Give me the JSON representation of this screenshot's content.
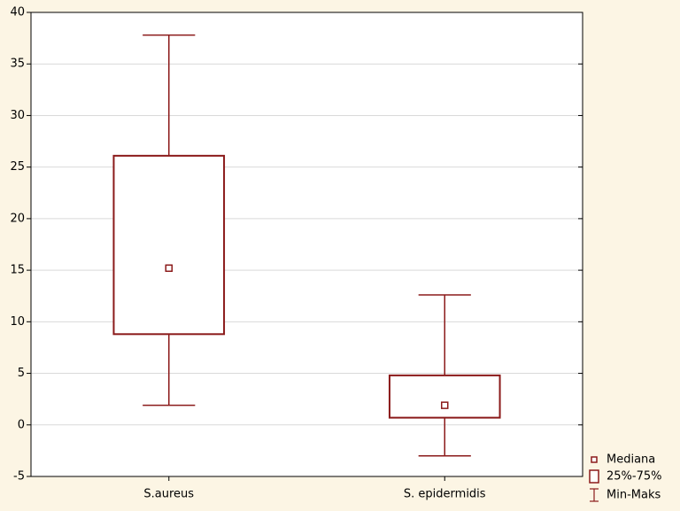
{
  "chart_data": {
    "type": "box",
    "categories": [
      "S.aureus",
      "S. epidermidis"
    ],
    "boxes": [
      {
        "min": 1.9,
        "q1": 8.8,
        "median": 15.2,
        "q3": 26.1,
        "max": 37.8
      },
      {
        "min": -3,
        "q1": 0.7,
        "median": 1.9,
        "q3": 4.8,
        "max": 12.6
      }
    ],
    "color": "#8b1a1a",
    "ylim": [
      -5,
      40
    ],
    "yticks": [
      -5,
      0,
      5,
      10,
      15,
      20,
      25,
      30,
      35,
      40
    ],
    "grid": true,
    "legend": [
      "Mediana",
      "25%-75%",
      "Min-Maks"
    ]
  }
}
